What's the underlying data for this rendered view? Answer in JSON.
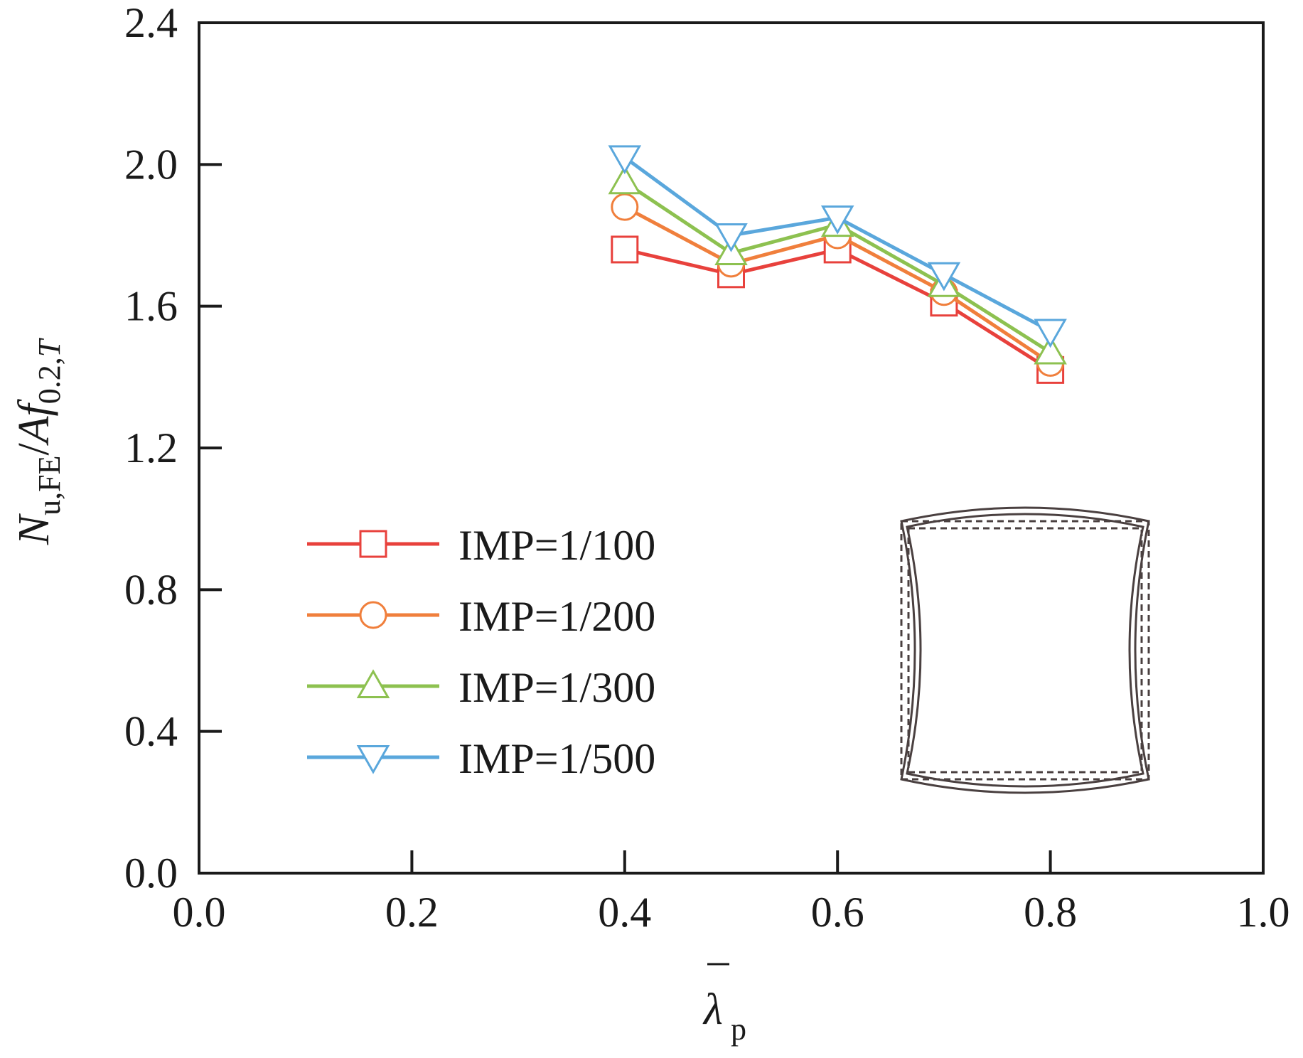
{
  "chart_data": {
    "type": "line",
    "x_axis": {
      "symbol": "λ",
      "subscript": "p",
      "has_overbar": true,
      "range": [
        0.0,
        1.0
      ],
      "ticks": [
        "0.0",
        "0.2",
        "0.4",
        "0.6",
        "0.8",
        "1.0"
      ]
    },
    "y_axis": {
      "label_parts": [
        {
          "text": "N",
          "italic": true,
          "sub": false
        },
        {
          "text": "u,FE",
          "italic": false,
          "sub": true
        },
        {
          "text": "/",
          "italic": false,
          "sub": false
        },
        {
          "text": "Af",
          "italic": true,
          "sub": false
        },
        {
          "text": "0.2,",
          "italic": false,
          "sub": true
        },
        {
          "text": "T",
          "italic": true,
          "sub": true
        }
      ],
      "range": [
        0.0,
        2.4
      ],
      "ticks": [
        "0.0",
        "0.4",
        "0.8",
        "1.2",
        "1.6",
        "2.0",
        "2.4"
      ]
    },
    "x": [
      0.4,
      0.5,
      0.6,
      0.7,
      0.8
    ],
    "series": [
      {
        "name": "IMP=1/100",
        "marker": "square",
        "color": "#e8413c",
        "values": [
          1.76,
          1.69,
          1.76,
          1.61,
          1.42
        ]
      },
      {
        "name": "IMP=1/200",
        "marker": "circle",
        "color": "#f07f3c",
        "values": [
          1.88,
          1.72,
          1.8,
          1.64,
          1.44
        ]
      },
      {
        "name": "IMP=1/300",
        "marker": "triangle-up",
        "color": "#8dc150",
        "values": [
          1.95,
          1.75,
          1.83,
          1.66,
          1.47
        ]
      },
      {
        "name": "IMP=1/500",
        "marker": "triangle-down",
        "color": "#5aa7dc",
        "values": [
          2.02,
          1.8,
          1.85,
          1.69,
          1.53
        ]
      }
    ],
    "legend_position": "lower-left",
    "grid": false,
    "inset": "square cross-section with deformed (solid) and undeformed (dashed) outlines"
  }
}
